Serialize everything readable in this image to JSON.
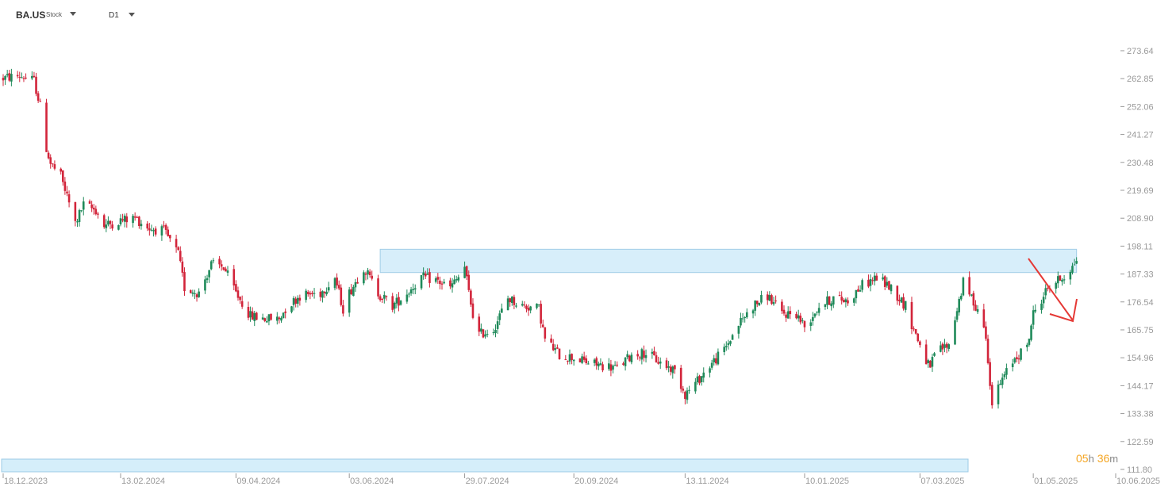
{
  "header": {
    "symbol": "BA.US",
    "asset_type": "Stock",
    "timeframe": "D1"
  },
  "countdown": {
    "hours": "05",
    "h_unit": "h",
    "minutes": "36",
    "m_unit": "m"
  },
  "colors": {
    "up": "#1f8a5a",
    "down": "#d2243a",
    "zone_fill": "#d5eefa",
    "zone_stroke": "#9ccbe6",
    "arrow": "#e53935",
    "axis_text": "#999999",
    "countdown": "#f5a623"
  },
  "chart_data": {
    "type": "candlestick",
    "y_range": [
      111.8,
      277.0
    ],
    "y_ticks": [
      "273.64",
      "262.85",
      "252.06",
      "241.27",
      "230.48",
      "219.69",
      "208.90",
      "198.11",
      "187.33",
      "176.54",
      "165.75",
      "154.96",
      "144.17",
      "133.38",
      "122.59",
      "111.80"
    ],
    "x_range": [
      "2023-12-18",
      "2025-06-10"
    ],
    "x_ticks": [
      {
        "label": "18.12.2023",
        "date": "2023-12-18"
      },
      {
        "label": "13.02.2024",
        "date": "2024-02-13"
      },
      {
        "label": "09.04.2024",
        "date": "2024-04-09"
      },
      {
        "label": "03.06.2024",
        "date": "2024-06-03"
      },
      {
        "label": "29.07.2024",
        "date": "2024-07-29"
      },
      {
        "label": "20.09.2024",
        "date": "2024-09-20"
      },
      {
        "label": "13.11.2024",
        "date": "2024-11-13"
      },
      {
        "label": "10.01.2025",
        "date": "2025-01-10"
      },
      {
        "label": "07.03.2025",
        "date": "2025-03-07"
      },
      {
        "label": "01.05.2025",
        "date": "2025-05-01"
      },
      {
        "label": "10.06.2025",
        "date": "2025-06-10"
      }
    ],
    "price_path": [
      [
        "2023-12-18",
        263
      ],
      [
        "2023-12-26",
        264
      ],
      [
        "2024-01-02",
        262
      ],
      [
        "2024-01-05",
        252
      ],
      [
        "2024-01-08",
        236
      ],
      [
        "2024-01-10",
        230
      ],
      [
        "2024-01-15",
        225
      ],
      [
        "2024-01-22",
        207
      ],
      [
        "2024-01-26",
        214
      ],
      [
        "2024-02-01",
        212
      ],
      [
        "2024-02-05",
        206
      ],
      [
        "2024-02-13",
        208
      ],
      [
        "2024-02-20",
        209
      ],
      [
        "2024-02-27",
        205
      ],
      [
        "2024-03-05",
        204
      ],
      [
        "2024-03-12",
        195
      ],
      [
        "2024-03-15",
        182
      ],
      [
        "2024-03-22",
        180
      ],
      [
        "2024-03-28",
        191
      ],
      [
        "2024-04-03",
        190
      ],
      [
        "2024-04-09",
        180
      ],
      [
        "2024-04-16",
        171
      ],
      [
        "2024-04-24",
        170
      ],
      [
        "2024-04-30",
        170
      ],
      [
        "2024-05-03",
        174
      ],
      [
        "2024-05-10",
        179
      ],
      [
        "2024-05-20",
        180
      ],
      [
        "2024-05-27",
        186
      ],
      [
        "2024-05-31",
        174
      ],
      [
        "2024-06-03",
        180
      ],
      [
        "2024-06-10",
        190
      ],
      [
        "2024-06-17",
        180
      ],
      [
        "2024-06-24",
        175
      ],
      [
        "2024-07-01",
        180
      ],
      [
        "2024-07-08",
        186
      ],
      [
        "2024-07-15",
        185
      ],
      [
        "2024-07-22",
        182
      ],
      [
        "2024-07-26",
        186
      ],
      [
        "2024-07-29",
        190
      ],
      [
        "2024-07-31",
        180
      ],
      [
        "2024-08-02",
        172
      ],
      [
        "2024-08-05",
        164
      ],
      [
        "2024-08-12",
        166
      ],
      [
        "2024-08-19",
        178
      ],
      [
        "2024-08-26",
        175
      ],
      [
        "2024-09-03",
        174
      ],
      [
        "2024-09-06",
        162
      ],
      [
        "2024-09-13",
        156
      ],
      [
        "2024-09-20",
        155
      ],
      [
        "2024-09-27",
        153
      ],
      [
        "2024-10-04",
        152
      ],
      [
        "2024-10-11",
        151
      ],
      [
        "2024-10-18",
        156
      ],
      [
        "2024-10-25",
        157
      ],
      [
        "2024-11-01",
        153
      ],
      [
        "2024-11-08",
        150
      ],
      [
        "2024-11-13",
        141
      ],
      [
        "2024-11-18",
        145
      ],
      [
        "2024-11-25",
        152
      ],
      [
        "2024-12-02",
        158
      ],
      [
        "2024-12-09",
        168
      ],
      [
        "2024-12-16",
        175
      ],
      [
        "2024-12-23",
        179
      ],
      [
        "2024-12-30",
        172
      ],
      [
        "2025-01-06",
        172
      ],
      [
        "2025-01-10",
        167
      ],
      [
        "2025-01-17",
        175
      ],
      [
        "2025-01-24",
        178
      ],
      [
        "2025-01-31",
        177
      ],
      [
        "2025-02-07",
        183
      ],
      [
        "2025-02-14",
        186
      ],
      [
        "2025-02-21",
        182
      ],
      [
        "2025-02-28",
        175
      ],
      [
        "2025-03-03",
        168
      ],
      [
        "2025-03-07",
        160
      ],
      [
        "2025-03-12",
        150
      ],
      [
        "2025-03-14",
        157
      ],
      [
        "2025-03-21",
        160
      ],
      [
        "2025-03-28",
        184
      ],
      [
        "2025-04-03",
        175
      ],
      [
        "2025-04-07",
        168
      ],
      [
        "2025-04-09",
        155
      ],
      [
        "2025-04-11",
        137
      ],
      [
        "2025-04-15",
        145
      ],
      [
        "2025-04-22",
        155
      ],
      [
        "2025-04-28",
        159
      ],
      [
        "2025-05-01",
        172
      ],
      [
        "2025-05-08",
        182
      ],
      [
        "2025-05-15",
        186
      ],
      [
        "2025-05-20",
        190
      ],
      [
        "2025-05-22",
        193
      ]
    ],
    "resistance_zone": {
      "from": "2024-06-18",
      "to": "2025-05-22",
      "y_low": 187.9,
      "y_high": 196.9
    },
    "expected_move": "down"
  }
}
